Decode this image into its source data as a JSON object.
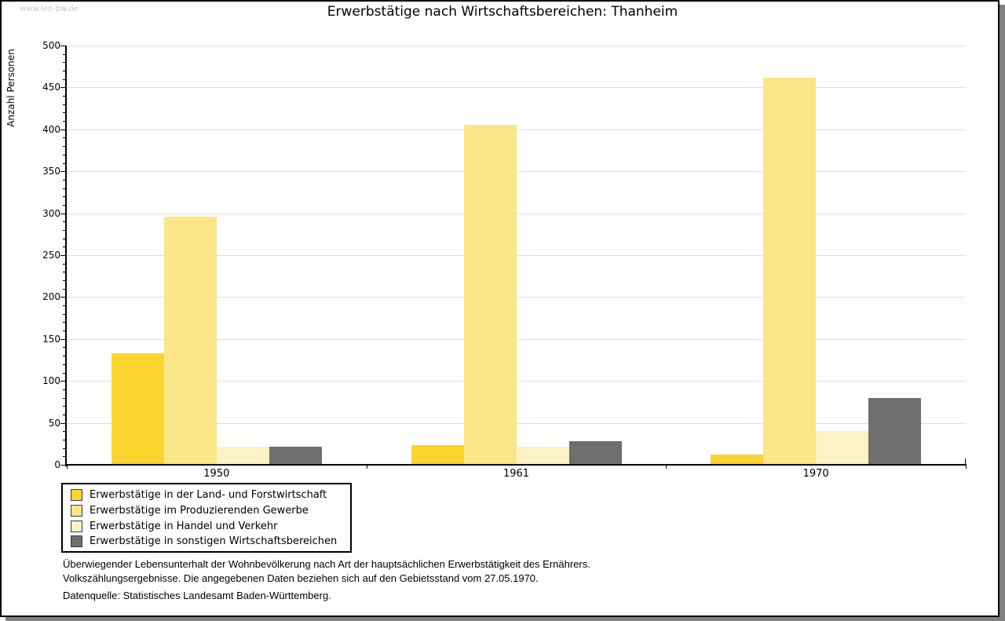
{
  "watermark": "www.leo-bw.de",
  "chart_data": {
    "type": "bar",
    "title": "Erwerbstätige nach Wirtschaftsbereichen: Thanheim",
    "xlabel": "",
    "ylabel": "Anzahl Personen",
    "ylim": [
      0,
      500
    ],
    "ytick_major": 50,
    "ytick_minor": 10,
    "grid": true,
    "legend_position": "bottom-left",
    "categories": [
      "1950",
      "1961",
      "1970"
    ],
    "series": [
      {
        "name": "Erwerbstätige in der Land- und Forstwirtschaft",
        "color": "#FBD42D",
        "values": [
          133,
          23,
          12
        ]
      },
      {
        "name": "Erwerbstätige im Produzierenden Gewerbe",
        "color": "#FCE586",
        "values": [
          296,
          405,
          462
        ]
      },
      {
        "name": "Erwerbstätige in Handel und Verkehr",
        "color": "#FCF2C6",
        "values": [
          22,
          22,
          40
        ]
      },
      {
        "name": "Erwerbstätige in sonstigen Wirtschaftsbereichen",
        "color": "#6E6E6E",
        "values": [
          22,
          28,
          80
        ]
      }
    ]
  },
  "footnote": {
    "line1": "Überwiegender Lebensunterhalt der Wohnbevölkerung nach Art der hauptsächlichen Erwerbstätigkeit des Ernährers.",
    "line2": "Volkszählungsergebnisse. Die angegebenen Daten beziehen sich auf den Gebietsstand vom 27.05.1970.",
    "source": "Datenquelle: Statistisches Landesamt Baden-Württemberg."
  },
  "colors": {
    "grid": "#E1E1E1",
    "axis": "#000000",
    "watermark": "#C6C6C6",
    "window_shadow": "#808080",
    "background": "#FFFFFF"
  }
}
